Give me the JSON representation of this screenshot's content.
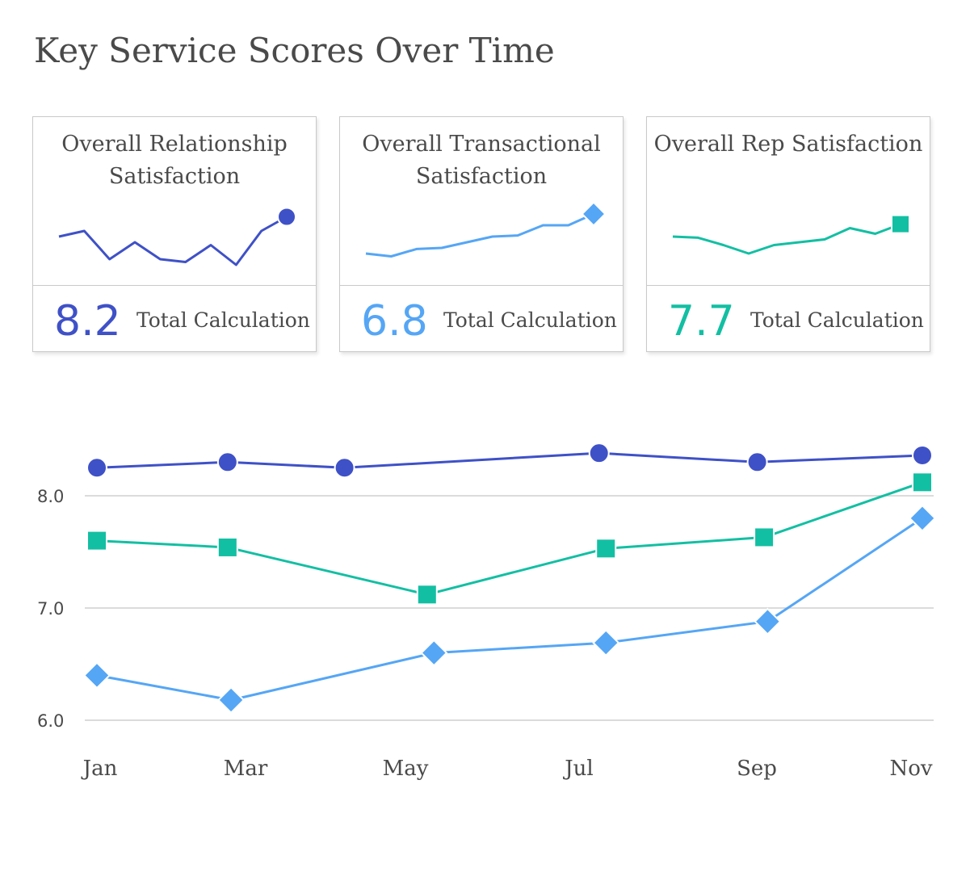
{
  "title": "Key Service Scores Over Time",
  "colors": {
    "relationship": "#3f51c7",
    "transactional": "#55a6f5",
    "rep": "#13bfa3",
    "grid": "#cfcfcf"
  },
  "cards": [
    {
      "title": "Overall Relationship Satisfaction",
      "value": "8.2",
      "label": "Total Calculation",
      "color": "#3f51c7",
      "marker": "circle",
      "sparkline": [
        6.1,
        6.2,
        5.7,
        6.0,
        5.7,
        5.65,
        5.95,
        5.6,
        6.2,
        6.45
      ]
    },
    {
      "title": "Overall Transactional Satisfaction",
      "value": "6.8",
      "label": "Total Calculation",
      "color": "#55a6f5",
      "marker": "diamond",
      "sparkline": [
        5.8,
        5.75,
        5.88,
        5.9,
        6.0,
        6.1,
        6.12,
        6.3,
        6.3,
        6.5
      ]
    },
    {
      "title": "Overall Rep Satisfaction",
      "value": "7.7",
      "label": "Total Calculation",
      "color": "#13bfa3",
      "marker": "square",
      "sparkline": [
        6.1,
        6.08,
        5.95,
        5.8,
        5.95,
        6.0,
        6.05,
        6.25,
        6.15,
        6.32
      ]
    }
  ],
  "chart_data": {
    "type": "line",
    "x": [
      "Jan",
      "Mar",
      "May",
      "Jul",
      "Sep",
      "Nov"
    ],
    "ylim": [
      6.0,
      8.4
    ],
    "yticks": [
      "6.0",
      "7.0",
      "8.0"
    ],
    "grid": true,
    "series": [
      {
        "key": "relationship",
        "color": "#3f51c7",
        "marker": "circle",
        "points": [
          [
            0,
            8.25
          ],
          [
            1.9,
            8.3
          ],
          [
            3.6,
            8.25
          ],
          [
            7.3,
            8.38
          ],
          [
            9.6,
            8.3
          ],
          [
            12,
            8.36
          ]
        ]
      },
      {
        "key": "rep",
        "color": "#13bfa3",
        "marker": "square",
        "points": [
          [
            0,
            7.6
          ],
          [
            1.9,
            7.54
          ],
          [
            4.8,
            7.12
          ],
          [
            7.4,
            7.53
          ],
          [
            9.7,
            7.63
          ],
          [
            12,
            8.12
          ]
        ]
      },
      {
        "key": "transactional",
        "color": "#55a6f5",
        "marker": "diamond",
        "points": [
          [
            0,
            6.4
          ],
          [
            1.95,
            6.18
          ],
          [
            4.9,
            6.6
          ],
          [
            7.4,
            6.69
          ],
          [
            9.75,
            6.88
          ],
          [
            12,
            7.8
          ]
        ]
      }
    ]
  }
}
